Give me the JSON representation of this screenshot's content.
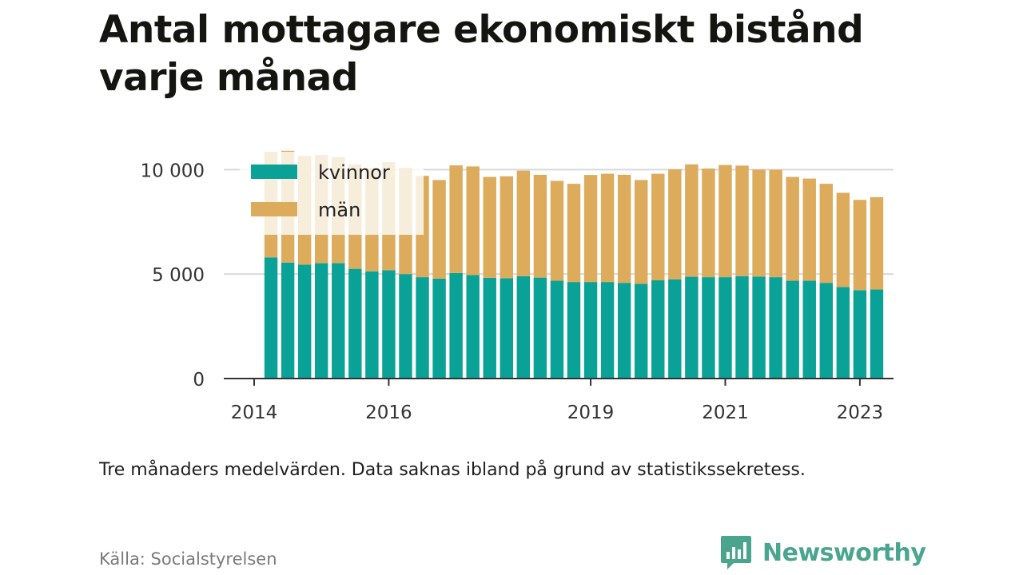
{
  "title": "Antal mottagare ekonomiskt bistånd varje månad",
  "note": "Tre månaders medelvärden. Data saknas ibland på grund av statistikssekretess.",
  "source": "Källa: Socialstyrelsen",
  "brand": {
    "name": "Newsworthy",
    "icon": "newsworthy-logo-icon",
    "color": "#4aa58f"
  },
  "chart_data": {
    "type": "bar",
    "stacked": true,
    "title": "",
    "xlabel": "",
    "ylabel": "",
    "ylim": [
      0,
      12000
    ],
    "yticks": [
      0,
      5000,
      10000
    ],
    "ytick_labels": [
      "0",
      "5 000",
      "10 000"
    ],
    "x_range": [
      2014.0,
      2023.5
    ],
    "xticks": [
      2014,
      2016,
      2019,
      2021,
      2023
    ],
    "xtick_labels": [
      "2014",
      "2016",
      "2019",
      "2021",
      "2023"
    ],
    "grid": "horizontal",
    "legend": {
      "position": "top-left",
      "entries": [
        "kvinnor",
        "män"
      ]
    },
    "x": [
      2014.25,
      2014.5,
      2014.75,
      2015.0,
      2015.25,
      2015.5,
      2015.75,
      2016.0,
      2016.25,
      2016.5,
      2016.75,
      2017.0,
      2017.25,
      2017.5,
      2017.75,
      2018.0,
      2018.25,
      2018.5,
      2018.75,
      2019.0,
      2019.25,
      2019.5,
      2019.75,
      2020.0,
      2020.25,
      2020.5,
      2020.75,
      2021.0,
      2021.25,
      2021.5,
      2021.75,
      2022.0,
      2022.25,
      2022.5,
      2022.75,
      2023.0,
      2023.25
    ],
    "series": [
      {
        "name": "kvinnor",
        "color": "#0aa296",
        "values": [
          5800,
          5550,
          5450,
          5520,
          5520,
          5250,
          5130,
          5180,
          5000,
          4850,
          4780,
          5050,
          4950,
          4820,
          4800,
          4900,
          4830,
          4680,
          4620,
          4620,
          4620,
          4580,
          4530,
          4700,
          4750,
          4870,
          4850,
          4850,
          4900,
          4880,
          4850,
          4680,
          4680,
          4580,
          4380,
          4230,
          4260
        ]
      },
      {
        "name": "män",
        "color": "#dcab5c",
        "values": [
          5050,
          5350,
          5200,
          5180,
          5080,
          5000,
          4950,
          5170,
          5080,
          4850,
          4720,
          5150,
          5200,
          4830,
          4880,
          5050,
          4920,
          4780,
          4700,
          5120,
          5180,
          5170,
          4970,
          5100,
          5260,
          5380,
          5200,
          5370,
          5290,
          5120,
          5140,
          4970,
          4890,
          4740,
          4510,
          4320,
          4420
        ]
      }
    ]
  }
}
